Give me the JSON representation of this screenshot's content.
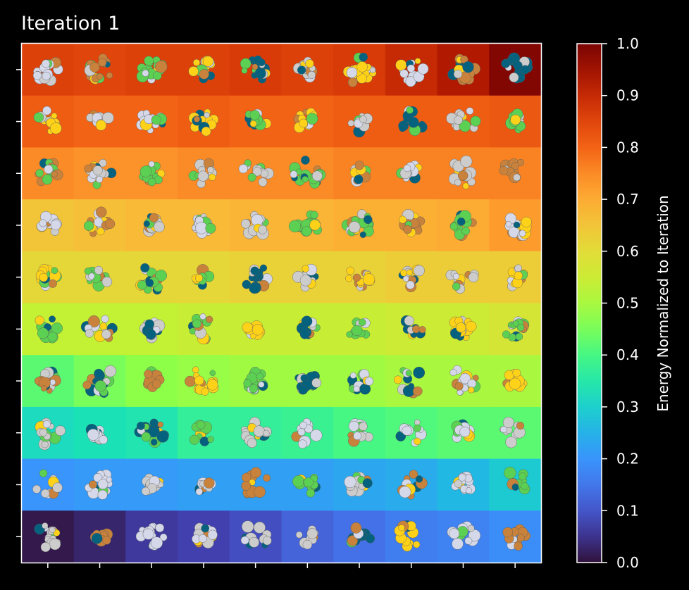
{
  "chart_data": {
    "type": "heatmap",
    "title": "Iteration 1",
    "colorbar": {
      "label": "Energy Normalized to Iteration",
      "range": [
        0.0,
        1.0
      ],
      "ticks": [
        "0.0",
        "0.1",
        "0.2",
        "0.3",
        "0.4",
        "0.5",
        "0.6",
        "0.7",
        "0.8",
        "0.9",
        "1.0"
      ],
      "colormap": "turbo"
    },
    "grid": {
      "rows": 10,
      "cols": 10
    },
    "values": [
      [
        0.86,
        0.85,
        0.86,
        0.86,
        0.87,
        0.86,
        0.87,
        0.9,
        0.93,
        0.99
      ],
      [
        0.81,
        0.8,
        0.8,
        0.81,
        0.8,
        0.8,
        0.81,
        0.81,
        0.81,
        0.82
      ],
      [
        0.75,
        0.74,
        0.74,
        0.75,
        0.75,
        0.75,
        0.76,
        0.76,
        0.76,
        0.76
      ],
      [
        0.65,
        0.66,
        0.67,
        0.67,
        0.68,
        0.68,
        0.69,
        0.69,
        0.7,
        0.73
      ],
      [
        0.61,
        0.61,
        0.61,
        0.61,
        0.62,
        0.62,
        0.62,
        0.63,
        0.63,
        0.63
      ],
      [
        0.53,
        0.53,
        0.53,
        0.54,
        0.54,
        0.54,
        0.54,
        0.55,
        0.55,
        0.57
      ],
      [
        0.42,
        0.45,
        0.47,
        0.48,
        0.49,
        0.49,
        0.49,
        0.5,
        0.5,
        0.5
      ],
      [
        0.32,
        0.33,
        0.34,
        0.37,
        0.37,
        0.38,
        0.4,
        0.41,
        0.42,
        0.42
      ],
      [
        0.2,
        0.21,
        0.21,
        0.22,
        0.22,
        0.22,
        0.23,
        0.24,
        0.26,
        0.29
      ],
      [
        0.01,
        0.03,
        0.06,
        0.07,
        0.09,
        0.12,
        0.14,
        0.16,
        0.17,
        0.19
      ]
    ],
    "ticks_labeled": false,
    "molecule_colors": [
      "#cccccc",
      "#d4d8e8",
      "#c8823c",
      "#04627e",
      "#5cd052",
      "#ffd21a"
    ]
  }
}
